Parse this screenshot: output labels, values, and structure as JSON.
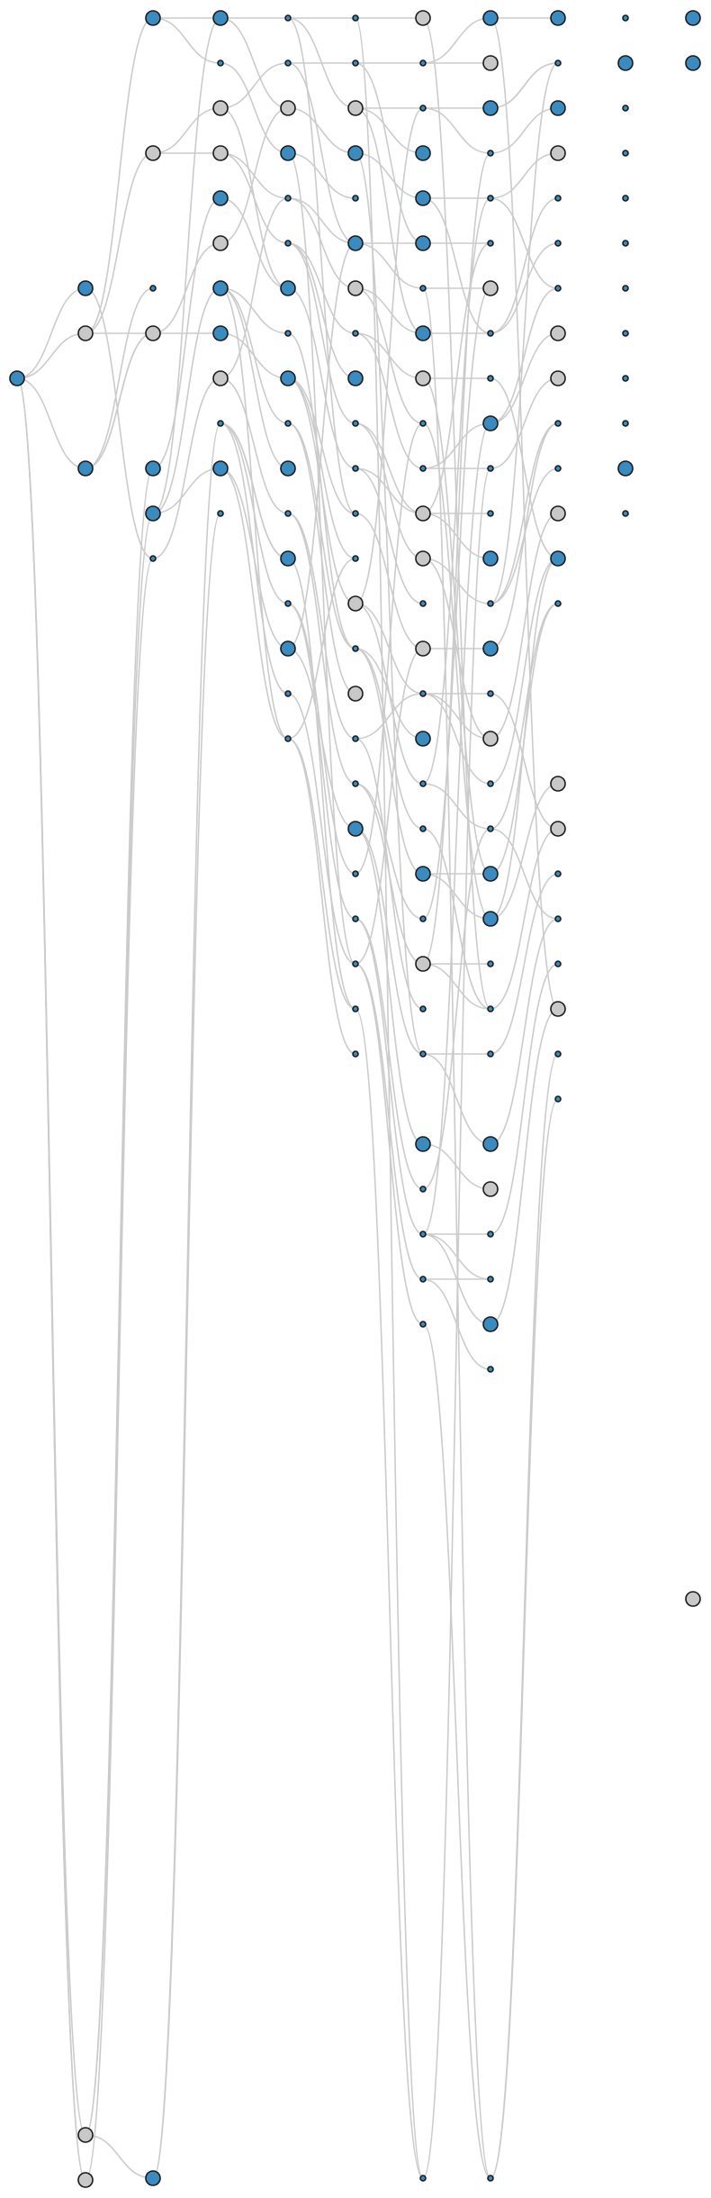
{
  "colors": {
    "blue_node": "#3a8cc0",
    "gray_node": "#c8c8c8",
    "edge": "#cbcbcb",
    "node_outline": "#1a1a1a"
  },
  "graph": {
    "layout": "layered-left-to-right",
    "node_kinds": [
      "blue",
      "gray",
      "dot"
    ],
    "layers": [
      [
        "blue"
      ],
      [
        "blue",
        "gray",
        "blue",
        "gray",
        "gray"
      ],
      [
        "blue",
        "gray",
        "dot",
        "gray",
        "blue",
        "blue",
        "dot",
        "blue"
      ],
      [
        "blue",
        "dot",
        "gray",
        "gray",
        "blue",
        "gray",
        "blue",
        "blue",
        "gray",
        "dot",
        "blue",
        "dot"
      ],
      [
        "dot",
        "dot",
        "gray",
        "blue",
        "dot",
        "dot",
        "blue",
        "dot",
        "blue",
        "dot",
        "blue",
        "dot",
        "blue",
        "dot",
        "blue",
        "dot",
        "dot"
      ],
      [
        "dot",
        "dot",
        "gray",
        "blue",
        "dot",
        "blue",
        "gray",
        "dot",
        "blue",
        "dot",
        "dot",
        "dot",
        "dot",
        "gray",
        "dot",
        "gray",
        "dot",
        "dot",
        "blue",
        "dot",
        "dot",
        "dot",
        "dot",
        "dot"
      ],
      [
        "gray",
        "dot",
        "dot",
        "blue",
        "blue",
        "blue",
        "dot",
        "blue",
        "gray",
        "dot",
        "dot",
        "gray",
        "gray",
        "dot",
        "gray",
        "dot",
        "blue",
        "dot",
        "dot",
        "blue",
        "dot",
        "gray",
        "dot",
        "dot",
        "blue",
        "dot",
        "dot",
        "dot",
        "dot",
        "dot"
      ],
      [
        "blue",
        "gray",
        "blue",
        "dot",
        "dot",
        "dot",
        "gray",
        "dot",
        "dot",
        "blue",
        "dot",
        "dot",
        "blue",
        "dot",
        "blue",
        "dot",
        "gray",
        "dot",
        "dot",
        "blue",
        "blue",
        "dot",
        "dot",
        "dot",
        "blue",
        "gray",
        "dot",
        "dot",
        "blue",
        "dot",
        "dot"
      ],
      [
        "blue",
        "dot",
        "blue",
        "gray",
        "dot",
        "dot",
        "dot",
        "gray",
        "gray",
        "dot",
        "dot",
        "gray",
        "blue",
        "dot",
        "gray",
        "gray",
        "dot",
        "dot",
        "dot",
        "gray",
        "dot",
        "dot"
      ],
      [
        "dot",
        "blue",
        "dot",
        "dot",
        "dot",
        "dot",
        "dot",
        "dot",
        "dot",
        "dot",
        "blue",
        "dot"
      ],
      [
        "blue",
        "blue",
        "gray"
      ]
    ],
    "edge_count": 200
  }
}
